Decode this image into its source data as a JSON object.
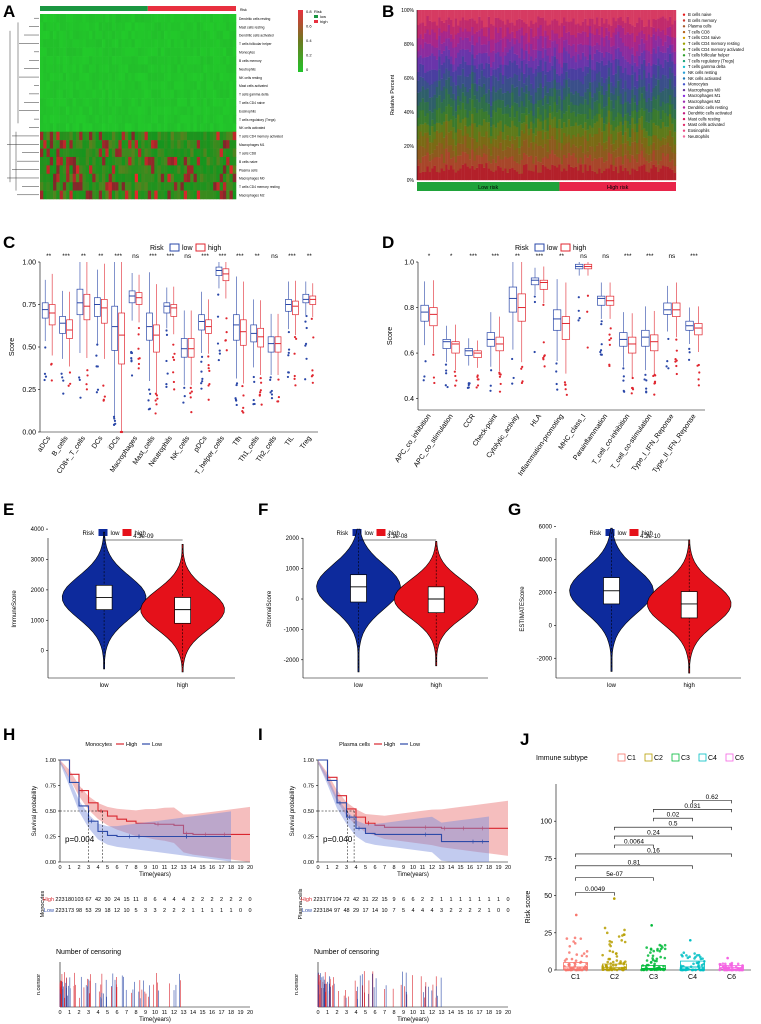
{
  "panel_labels": [
    "A",
    "B",
    "C",
    "D",
    "E",
    "F",
    "G",
    "H",
    "I",
    "J"
  ],
  "chart_data": [
    {
      "id": "A",
      "type": "heatmap",
      "legend_title": "Risk",
      "legend_items": [
        "low",
        "high"
      ],
      "scale_ticks": [
        "0.8",
        "0.6",
        "0.4",
        "0.2",
        "0"
      ],
      "rows": [
        "Dendritic cells resting",
        "Mast cells resting",
        "Dendritic cells activated",
        "T cells follicular helper",
        "Monocytes",
        "B cells memory",
        "Neutrophils",
        "NK cells resting",
        "Mast cells activated",
        "T cells gamma delta",
        "T cells CD4 naive",
        "Eosinophils",
        "T cells regulatory (Tregs)",
        "NK cells activated",
        "T cells CD4 memory activated",
        "Macrophages M1",
        "T cells CD8",
        "B cells naive",
        "Plasma cells",
        "Macrophages M0",
        "T cells CD4 memory resting",
        "Macrophages M2"
      ],
      "colors": {
        "low": "#1a9641",
        "high": "#e8303f",
        "heat_low": "#22c42a",
        "heat_high": "#e8303f"
      }
    },
    {
      "id": "B",
      "type": "bar",
      "ylabel": "Relative Percent",
      "yticks": [
        "0%",
        "20%",
        "40%",
        "60%",
        "80%",
        "100%"
      ],
      "groups": [
        "Low risk",
        "High risk"
      ],
      "legend": [
        "B cells naive",
        "B cells memory",
        "Plasma cells",
        "T cells CD8",
        "T cells CD4 naive",
        "T cells CD4 memory resting",
        "T cells CD4 memory activated",
        "T cells follicular helper",
        "T cells regulatory (Tregs)",
        "T cells gamma delta",
        "NK cells resting",
        "NK cells activated",
        "Monocytes",
        "Macrophages M0",
        "Macrophages M1",
        "Macrophages M2",
        "Dendritic cells resting",
        "Dendritic cells activated",
        "Mast cells resting",
        "Mast cells activated",
        "Eosinophils",
        "Neutrophils"
      ],
      "legend_colors": [
        "#e41a1c",
        "#c8382f",
        "#a65628",
        "#b5651d",
        "#d2a000",
        "#9aa000",
        "#6a9a00",
        "#2ca02c",
        "#1fa37a",
        "#17becf",
        "#2a9fd6",
        "#1f77b4",
        "#4455cc",
        "#6a3d9a",
        "#8a2be2",
        "#9c2fb0",
        "#b31fa0",
        "#c2187d",
        "#d81b60",
        "#e0306d",
        "#ea4c85",
        "#f06a9e"
      ]
    },
    {
      "id": "C",
      "type": "boxplot",
      "legend_title": "Risk",
      "legend": [
        "low",
        "high"
      ],
      "ylabel": "Score",
      "ylim": [
        0,
        1.0
      ],
      "yticks": [
        "0.00",
        "0.25",
        "0.50",
        "0.75",
        "1.00"
      ],
      "categories": [
        "aDCs",
        "B_cells",
        "CD8+_T_cells",
        "DCs",
        "iDCs",
        "Macrophages",
        "Mast_cells",
        "Neutrophils",
        "NK_cells",
        "pDCs",
        "T_helper_cells",
        "Tfh",
        "Th1_cells",
        "Th2_cells",
        "TIL",
        "Treg"
      ],
      "significance": [
        "**",
        "***",
        "**",
        "**",
        "***",
        "ns",
        "***",
        "***",
        "ns",
        "***",
        "***",
        "***",
        "**",
        "ns",
        "***",
        "**"
      ],
      "low": {
        "q1": [
          0.67,
          0.58,
          0.69,
          0.68,
          0.48,
          0.76,
          0.54,
          0.7,
          0.44,
          0.6,
          0.92,
          0.54,
          0.53,
          0.47,
          0.71,
          0.76
        ],
        "med": [
          0.72,
          0.64,
          0.76,
          0.75,
          0.62,
          0.8,
          0.62,
          0.74,
          0.49,
          0.65,
          0.95,
          0.63,
          0.58,
          0.52,
          0.75,
          0.78
        ],
        "q3": [
          0.76,
          0.68,
          0.84,
          0.79,
          0.74,
          0.83,
          0.7,
          0.76,
          0.55,
          0.69,
          0.97,
          0.69,
          0.63,
          0.56,
          0.78,
          0.81
        ]
      },
      "high": {
        "q1": [
          0.63,
          0.55,
          0.66,
          0.64,
          0.4,
          0.75,
          0.47,
          0.68,
          0.44,
          0.58,
          0.89,
          0.51,
          0.5,
          0.47,
          0.69,
          0.75
        ],
        "med": [
          0.7,
          0.6,
          0.74,
          0.73,
          0.57,
          0.79,
          0.57,
          0.73,
          0.49,
          0.62,
          0.93,
          0.59,
          0.56,
          0.52,
          0.74,
          0.78
        ],
        "q3": [
          0.75,
          0.66,
          0.81,
          0.78,
          0.7,
          0.82,
          0.63,
          0.75,
          0.55,
          0.66,
          0.96,
          0.66,
          0.61,
          0.56,
          0.77,
          0.8
        ]
      }
    },
    {
      "id": "D",
      "type": "boxplot",
      "legend_title": "Risk",
      "legend": [
        "low",
        "high"
      ],
      "ylabel": "Score",
      "ylim": [
        0.35,
        1.0
      ],
      "yticks": [
        "0.4",
        "0.6",
        "0.8",
        "1.0"
      ],
      "categories": [
        "APC_co_inhibition",
        "APC_co_stimulation",
        "CCR",
        "Check-point",
        "Cytolytic_activity",
        "HLA",
        "Inflammation-promoting",
        "MHC_class_I",
        "Parainflammation",
        "T_cell_co-inhibition",
        "T_cell_co-stimulation",
        "Type_I_IFN_Reponse",
        "Type_II_IFN_Reponse"
      ],
      "significance": [
        "*",
        "*",
        "***",
        "***",
        "**",
        "***",
        "**",
        "ns",
        "ns",
        "***",
        "***",
        "ns",
        "***"
      ],
      "low": {
        "q1": [
          0.74,
          0.62,
          0.59,
          0.63,
          0.78,
          0.9,
          0.7,
          0.97,
          0.81,
          0.63,
          0.63,
          0.77,
          0.7
        ],
        "med": [
          0.78,
          0.65,
          0.61,
          0.66,
          0.84,
          0.92,
          0.75,
          0.98,
          0.84,
          0.66,
          0.67,
          0.79,
          0.72
        ],
        "q3": [
          0.81,
          0.66,
          0.62,
          0.69,
          0.89,
          0.93,
          0.79,
          0.99,
          0.85,
          0.69,
          0.7,
          0.82,
          0.74
        ]
      },
      "high": {
        "q1": [
          0.72,
          0.6,
          0.58,
          0.61,
          0.74,
          0.88,
          0.66,
          0.97,
          0.81,
          0.6,
          0.61,
          0.76,
          0.68
        ],
        "med": [
          0.77,
          0.64,
          0.6,
          0.64,
          0.8,
          0.91,
          0.73,
          0.98,
          0.83,
          0.64,
          0.65,
          0.79,
          0.71
        ],
        "q3": [
          0.8,
          0.65,
          0.61,
          0.67,
          0.86,
          0.92,
          0.76,
          0.99,
          0.85,
          0.67,
          0.68,
          0.82,
          0.73
        ]
      }
    },
    {
      "id": "E",
      "type": "violin",
      "legend_title": "Risk",
      "legend": [
        "low",
        "high"
      ],
      "ylabel": "ImmuneScore",
      "pvalue": "4.3e-09",
      "yticks": [
        "0",
        "1000",
        "2000",
        "3000",
        "4000"
      ],
      "ylim": [
        -900,
        4300
      ],
      "categories": [
        "low",
        "high"
      ],
      "median": [
        1750,
        1350
      ],
      "q1": [
        1350,
        900
      ],
      "q3": [
        2150,
        1750
      ],
      "min": [
        -600,
        -700
      ],
      "max": [
        3900,
        3500
      ]
    },
    {
      "id": "F",
      "type": "violin",
      "legend_title": "Risk",
      "legend": [
        "low",
        "high"
      ],
      "ylabel": "StromalScore",
      "pvalue": "3.1e-08",
      "yticks": [
        "-2000",
        "-1000",
        "0",
        "1000",
        "2000"
      ],
      "ylim": [
        -2600,
        2600
      ],
      "categories": [
        "low",
        "high"
      ],
      "median": [
        400,
        0
      ],
      "q1": [
        -100,
        -450
      ],
      "q3": [
        800,
        400
      ],
      "min": [
        -2400,
        -2200
      ],
      "max": [
        2300,
        1900
      ]
    },
    {
      "id": "G",
      "type": "violin",
      "legend_title": "Risk",
      "legend": [
        "low",
        "high"
      ],
      "ylabel": "ESTIMATEScore",
      "pvalue": "4.2e-10",
      "yticks": [
        "-2000",
        "0",
        "2000",
        "4000",
        "6000"
      ],
      "ylim": [
        -3200,
        6400
      ],
      "categories": [
        "low",
        "high"
      ],
      "median": [
        2100,
        1300
      ],
      "q1": [
        1300,
        450
      ],
      "q3": [
        2900,
        2050
      ],
      "min": [
        -2800,
        -2900
      ],
      "max": [
        5900,
        5200
      ]
    },
    {
      "id": "H",
      "type": "line",
      "title": "Monocytes",
      "legend": [
        "High",
        "Low"
      ],
      "ylabel": "Survival probability",
      "xlabel": "Time(years)",
      "pvalue": "p=0.004",
      "yticks": [
        "0.00",
        "0.25",
        "0.50",
        "0.75",
        "1.00"
      ],
      "x": [
        0,
        1,
        2,
        3,
        4,
        5,
        6,
        7,
        8,
        9,
        10,
        11,
        12,
        13,
        14,
        15,
        16,
        17,
        18,
        19,
        20
      ],
      "high_surv": [
        1.0,
        0.86,
        0.7,
        0.58,
        0.5,
        0.45,
        0.42,
        0.4,
        0.38,
        0.38,
        0.37,
        0.37,
        0.36,
        0.28,
        0.27,
        0.27,
        0.27,
        0.27,
        0.27,
        0.27,
        0.27
      ],
      "low_surv": [
        1.0,
        0.78,
        0.55,
        0.4,
        0.3,
        0.26,
        0.25,
        0.25,
        0.25,
        0.25,
        0.25,
        0.25,
        0.25,
        0.25,
        0.25,
        0.25,
        0.25,
        0.25,
        0.25
      ],
      "median_years": [
        4.5,
        3.0
      ],
      "risk_table_label": "Monocytes",
      "risk_high": "223 180 103 67 42 30 24 15 11 8 6 4 4 4 2 2 2 2 2 2 0",
      "risk_low": "223 173 98 53 29 18 12 10 5 3 3 2 2 2 1 1 1 1 1 0 0",
      "censor_title": "Number of censoring",
      "censor_ylabel": "n.censor"
    },
    {
      "id": "I",
      "type": "line",
      "title": "Plasma cells",
      "legend": [
        "High",
        "Low"
      ],
      "ylabel": "Survival probability",
      "xlabel": "Time(years)",
      "pvalue": "p=0.040",
      "yticks": [
        "0.00",
        "0.25",
        "0.50",
        "0.75",
        "1.00"
      ],
      "x": [
        0,
        1,
        2,
        3,
        4,
        5,
        6,
        7,
        8,
        9,
        10,
        11,
        12,
        13,
        14,
        15,
        16,
        17,
        18,
        19,
        20
      ],
      "high_surv": [
        1.0,
        0.83,
        0.65,
        0.52,
        0.44,
        0.38,
        0.36,
        0.34,
        0.34,
        0.34,
        0.34,
        0.34,
        0.34,
        0.33,
        0.33,
        0.33,
        0.33,
        0.33,
        0.33,
        0.33,
        0.33
      ],
      "low_surv": [
        1.0,
        0.8,
        0.58,
        0.44,
        0.33,
        0.28,
        0.27,
        0.27,
        0.27,
        0.27,
        0.27,
        0.27,
        0.27,
        0.2,
        0.2,
        0.2,
        0.2,
        0.2,
        0.2
      ],
      "median_years": [
        3.8,
        3.1
      ],
      "risk_table_label": "Plasma cells",
      "risk_high": "223 177 104 72 42 31 22 15 9 6 6 2 2 1 1 1 1 1 1 1 0",
      "risk_low": "223 184 97 48 29 17 14 10 7 5 4 4 4 3 2 2 2 2 1 0 0",
      "censor_title": "Number of censoring",
      "censor_ylabel": "n.censor"
    },
    {
      "id": "J",
      "type": "boxplot",
      "legend_title": "Immune subtype",
      "legend": [
        "C1",
        "C2",
        "C3",
        "C4",
        "C6"
      ],
      "legend_colors": [
        "#f8766d",
        "#b79f00",
        "#00ba38",
        "#00bfc4",
        "#f564e3"
      ],
      "ylabel": "Risk score",
      "ylim": [
        0,
        125
      ],
      "yticks": [
        "0",
        "25",
        "50",
        "75",
        "100"
      ],
      "categories": [
        "C1",
        "C2",
        "C3",
        "C4",
        "C6"
      ],
      "median": [
        2,
        1.5,
        1,
        2,
        1.5
      ],
      "q1": [
        0.5,
        0.5,
        0.3,
        0.5,
        0.5
      ],
      "q3": [
        5,
        4,
        3,
        6,
        3
      ],
      "max_outlier": [
        37,
        48,
        30,
        20,
        8
      ],
      "comparisons": [
        {
          "pair": [
            "C1",
            "C2"
          ],
          "p": "0.0049"
        },
        {
          "pair": [
            "C1",
            "C3"
          ],
          "p": "5e-07"
        },
        {
          "pair": [
            "C1",
            "C4"
          ],
          "p": "0.81"
        },
        {
          "pair": [
            "C1",
            "C6"
          ],
          "p": "0.16"
        },
        {
          "pair": [
            "C2",
            "C3"
          ],
          "p": "0.0064"
        },
        {
          "pair": [
            "C2",
            "C4"
          ],
          "p": "0.24"
        },
        {
          "pair": [
            "C2",
            "C6"
          ],
          "p": "0.5"
        },
        {
          "pair": [
            "C3",
            "C4"
          ],
          "p": "0.02"
        },
        {
          "pair": [
            "C3",
            "C6"
          ],
          "p": "0.031"
        },
        {
          "pair": [
            "C4",
            "C6"
          ],
          "p": "0.62"
        }
      ]
    }
  ]
}
